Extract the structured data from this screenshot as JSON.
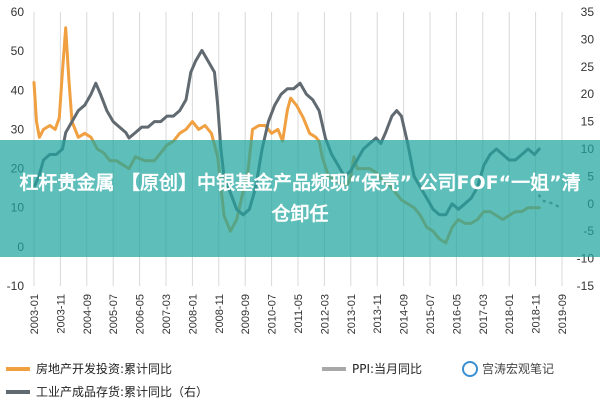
{
  "overlay": {
    "title": "杠杆贵金属 【原创】中银基金产品频现“保壳” 公司FOF“一姐”清仓卸任",
    "watermark": "宫涛宏观笔记"
  },
  "colors": {
    "series1": "#f0a040",
    "series2": "#a8a8a8",
    "series3": "#606a70",
    "grid": "#d8d8d8",
    "banner": "#1ea5a0"
  },
  "chart_data": {
    "type": "line",
    "left_axis": {
      "min": -10,
      "max": 60,
      "ticks": [
        -10,
        0,
        10,
        20,
        30,
        40,
        50,
        60
      ]
    },
    "right_axis": {
      "min": -15,
      "max": 35,
      "ticks": [
        -15,
        -10,
        -5,
        0,
        5,
        10,
        15,
        20,
        25,
        30,
        35
      ]
    },
    "x_labels": [
      "2003-01",
      "2003-11",
      "2004-09",
      "2005-07",
      "2006-05",
      "2007-03",
      "2008-01",
      "2008-11",
      "2009-09",
      "2010-07",
      "2011-05",
      "2012-03",
      "2013-01",
      "2013-11",
      "2014-09",
      "2015-07",
      "2016-05",
      "2017-03",
      "2018-01",
      "2018-11",
      "2019-09"
    ],
    "x_range": [
      2003.0,
      2019.67
    ],
    "series": [
      {
        "name": "房地产开发投资:累计同比",
        "axis": "left",
        "style": "solid",
        "points": [
          [
            2003.0,
            42
          ],
          [
            2003.08,
            32
          ],
          [
            2003.17,
            28
          ],
          [
            2003.3,
            30
          ],
          [
            2003.5,
            31
          ],
          [
            2003.67,
            30
          ],
          [
            2003.8,
            33
          ],
          [
            2003.9,
            45
          ],
          [
            2004.0,
            56
          ],
          [
            2004.1,
            43
          ],
          [
            2004.2,
            32
          ],
          [
            2004.4,
            28
          ],
          [
            2004.6,
            29
          ],
          [
            2004.8,
            28
          ],
          [
            2005.0,
            25
          ],
          [
            2005.2,
            24
          ],
          [
            2005.4,
            22
          ],
          [
            2005.6,
            22
          ],
          [
            2005.8,
            21
          ],
          [
            2006.0,
            20
          ],
          [
            2006.2,
            23
          ],
          [
            2006.5,
            22
          ],
          [
            2006.8,
            22
          ],
          [
            2007.0,
            24
          ],
          [
            2007.2,
            26
          ],
          [
            2007.4,
            27
          ],
          [
            2007.6,
            29
          ],
          [
            2007.8,
            30
          ],
          [
            2008.0,
            32
          ],
          [
            2008.2,
            30
          ],
          [
            2008.4,
            31
          ],
          [
            2008.6,
            29
          ],
          [
            2008.8,
            23
          ],
          [
            2009.0,
            8
          ],
          [
            2009.2,
            4
          ],
          [
            2009.4,
            7
          ],
          [
            2009.6,
            14
          ],
          [
            2009.75,
            19
          ],
          [
            2009.9,
            30
          ],
          [
            2010.1,
            31
          ],
          [
            2010.3,
            31
          ],
          [
            2010.5,
            29
          ],
          [
            2010.7,
            30
          ],
          [
            2010.85,
            27
          ],
          [
            2011.0,
            35
          ],
          [
            2011.1,
            38
          ],
          [
            2011.3,
            36
          ],
          [
            2011.5,
            33
          ],
          [
            2011.7,
            29
          ],
          [
            2011.9,
            28
          ],
          [
            2012.0,
            27
          ],
          [
            2012.1,
            23
          ],
          [
            2012.3,
            18
          ],
          [
            2012.5,
            17
          ],
          [
            2012.7,
            16
          ],
          [
            2012.9,
            16
          ],
          [
            2013.0,
            18
          ],
          [
            2013.1,
            23
          ],
          [
            2013.2,
            20
          ],
          [
            2013.4,
            20
          ],
          [
            2013.6,
            20
          ],
          [
            2013.8,
            19
          ],
          [
            2014.0,
            17
          ],
          [
            2014.2,
            16
          ],
          [
            2014.4,
            14
          ],
          [
            2014.6,
            12
          ],
          [
            2014.8,
            11
          ],
          [
            2015.0,
            10
          ],
          [
            2015.2,
            8
          ],
          [
            2015.4,
            5
          ],
          [
            2015.6,
            4
          ],
          [
            2015.8,
            2
          ],
          [
            2016.0,
            1
          ],
          [
            2016.2,
            5
          ],
          [
            2016.4,
            7
          ],
          [
            2016.6,
            6
          ],
          [
            2016.8,
            6
          ],
          [
            2017.0,
            7
          ],
          [
            2017.2,
            9
          ],
          [
            2017.4,
            9
          ],
          [
            2017.6,
            8
          ],
          [
            2017.8,
            7
          ],
          [
            2018.0,
            8
          ],
          [
            2018.2,
            9
          ],
          [
            2018.4,
            9
          ],
          [
            2018.6,
            10
          ],
          [
            2018.8,
            10
          ],
          [
            2018.95,
            10
          ]
        ]
      },
      {
        "name": "PPI:当月同比",
        "axis": "right",
        "style": "dotted",
        "points": [
          [
            2018.95,
            1.5
          ],
          [
            2019.1,
            0.5
          ],
          [
            2019.25,
            0.3
          ],
          [
            2019.4,
            0
          ],
          [
            2019.55,
            -0.5
          ],
          [
            2019.67,
            -0.8
          ]
        ]
      },
      {
        "name": "工业产成品存货:累计同比（右）",
        "axis": "right",
        "style": "solid",
        "points": [
          [
            2003.0,
            3
          ],
          [
            2003.15,
            5
          ],
          [
            2003.3,
            8
          ],
          [
            2003.5,
            9
          ],
          [
            2003.7,
            9
          ],
          [
            2003.9,
            10
          ],
          [
            2004.0,
            13
          ],
          [
            2004.2,
            15
          ],
          [
            2004.4,
            17
          ],
          [
            2004.6,
            18
          ],
          [
            2004.8,
            20
          ],
          [
            2004.95,
            22
          ],
          [
            2005.1,
            20
          ],
          [
            2005.3,
            17
          ],
          [
            2005.5,
            15
          ],
          [
            2005.7,
            14
          ],
          [
            2005.9,
            13
          ],
          [
            2006.0,
            12
          ],
          [
            2006.2,
            13
          ],
          [
            2006.4,
            14
          ],
          [
            2006.6,
            14
          ],
          [
            2006.8,
            15
          ],
          [
            2007.0,
            15
          ],
          [
            2007.2,
            16
          ],
          [
            2007.4,
            16
          ],
          [
            2007.6,
            17
          ],
          [
            2007.8,
            19
          ],
          [
            2007.95,
            24
          ],
          [
            2008.1,
            26
          ],
          [
            2008.3,
            28
          ],
          [
            2008.5,
            26
          ],
          [
            2008.7,
            24
          ],
          [
            2008.8,
            18
          ],
          [
            2008.9,
            10
          ],
          [
            2009.0,
            5
          ],
          [
            2009.2,
            2
          ],
          [
            2009.4,
            -1
          ],
          [
            2009.6,
            -2
          ],
          [
            2009.8,
            -1
          ],
          [
            2010.0,
            3
          ],
          [
            2010.2,
            10
          ],
          [
            2010.4,
            15
          ],
          [
            2010.6,
            18
          ],
          [
            2010.8,
            20
          ],
          [
            2011.0,
            21
          ],
          [
            2011.2,
            21
          ],
          [
            2011.4,
            22
          ],
          [
            2011.6,
            20
          ],
          [
            2011.8,
            19
          ],
          [
            2012.0,
            17
          ],
          [
            2012.2,
            12
          ],
          [
            2012.4,
            9
          ],
          [
            2012.6,
            7
          ],
          [
            2012.8,
            5
          ],
          [
            2013.0,
            6
          ],
          [
            2013.2,
            8
          ],
          [
            2013.4,
            10
          ],
          [
            2013.6,
            11
          ],
          [
            2013.8,
            12
          ],
          [
            2013.95,
            11
          ],
          [
            2014.1,
            13
          ],
          [
            2014.3,
            16
          ],
          [
            2014.45,
            17
          ],
          [
            2014.6,
            16
          ],
          [
            2014.8,
            11
          ],
          [
            2015.0,
            5
          ],
          [
            2015.2,
            3
          ],
          [
            2015.4,
            1
          ],
          [
            2015.6,
            -1
          ],
          [
            2015.8,
            -2
          ],
          [
            2016.0,
            -2
          ],
          [
            2016.2,
            0
          ],
          [
            2016.4,
            -1
          ],
          [
            2016.6,
            0
          ],
          [
            2016.8,
            1
          ],
          [
            2017.0,
            3
          ],
          [
            2017.2,
            7
          ],
          [
            2017.4,
            9
          ],
          [
            2017.6,
            10
          ],
          [
            2017.8,
            9
          ],
          [
            2018.0,
            8
          ],
          [
            2018.2,
            8
          ],
          [
            2018.4,
            9
          ],
          [
            2018.6,
            10
          ],
          [
            2018.8,
            9
          ],
          [
            2018.95,
            10
          ]
        ]
      }
    ],
    "legend": {
      "position": "bottom",
      "items": [
        {
          "name": "房地产开发投资:累计同比",
          "style": "solid",
          "color": "#f0a040"
        },
        {
          "name": "PPI:当月同比",
          "style": "solid",
          "color": "#a8a8a8"
        },
        {
          "name": "工业产成品存货:累计同比（右）",
          "style": "solid",
          "color": "#606a70"
        }
      ]
    },
    "grid": "vertical"
  }
}
